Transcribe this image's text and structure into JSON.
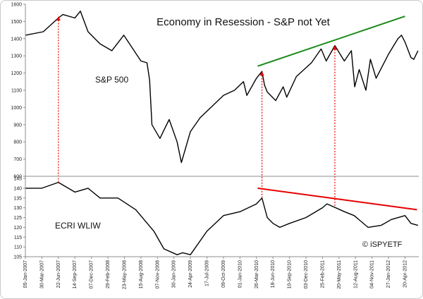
{
  "chart_data": [
    {
      "type": "line",
      "title": "Economy in Resession - S&P not Yet",
      "series": [
        {
          "name": "S&P 500",
          "x": [
            "2007-01-05",
            "2007-04-06",
            "2007-06-22",
            "2007-07-15",
            "2007-09-14",
            "2007-10-12",
            "2007-11-20",
            "2008-01-20",
            "2008-03-20",
            "2008-05-20",
            "2008-08-15",
            "2008-09-15",
            "2008-09-28",
            "2008-10-10",
            "2008-11-20",
            "2008-12-15",
            "2009-01-06",
            "2009-02-15",
            "2009-03-09",
            "2009-04-24",
            "2009-06-12",
            "2009-08-15",
            "2009-10-09",
            "2009-12-04",
            "2010-01-19",
            "2010-02-05",
            "2010-03-26",
            "2010-04-23",
            "2010-05-06",
            "2010-05-20",
            "2010-07-02",
            "2010-08-09",
            "2010-08-27",
            "2010-10-15",
            "2010-12-31",
            "2011-02-18",
            "2011-03-16",
            "2011-04-29",
            "2011-06-16",
            "2011-07-22",
            "2011-08-08",
            "2011-08-31",
            "2011-10-04",
            "2011-10-27",
            "2011-11-25",
            "2012-01-27",
            "2012-03-15",
            "2012-04-02",
            "2012-04-20",
            "2012-05-20",
            "2012-06-04",
            "2012-06-25"
          ],
          "values": [
            1420,
            1440,
            1520,
            1540,
            1520,
            1560,
            1440,
            1370,
            1330,
            1420,
            1270,
            1260,
            1160,
            900,
            820,
            880,
            930,
            800,
            680,
            860,
            940,
            1010,
            1070,
            1100,
            1150,
            1070,
            1170,
            1210,
            1130,
            1090,
            1040,
            1120,
            1060,
            1180,
            1260,
            1340,
            1270,
            1360,
            1270,
            1330,
            1120,
            1220,
            1100,
            1280,
            1170,
            1310,
            1400,
            1420,
            1380,
            1290,
            1280,
            1330
          ]
        },
        {
          "name": "ECRI WLIW",
          "x": [
            "2007-01-05",
            "2007-03-30",
            "2007-06-22",
            "2007-09-14",
            "2007-11-20",
            "2008-01-20",
            "2008-04-20",
            "2008-07-20",
            "2008-10-20",
            "2008-12-10",
            "2009-02-15",
            "2009-03-15",
            "2009-04-24",
            "2009-07-17",
            "2009-10-09",
            "2010-01-01",
            "2010-03-26",
            "2010-04-23",
            "2010-05-20",
            "2010-06-18",
            "2010-07-23",
            "2010-09-10",
            "2010-12-03",
            "2011-02-25",
            "2011-03-20",
            "2011-06-17",
            "2011-08-05",
            "2011-10-15",
            "2011-12-20",
            "2012-02-10",
            "2012-04-20",
            "2012-05-20",
            "2012-06-25"
          ],
          "values": [
            140,
            140,
            143,
            138,
            140,
            135,
            135,
            129,
            118,
            109,
            106,
            107,
            106,
            118,
            126,
            128,
            132,
            135,
            125,
            122,
            120,
            122,
            125,
            130,
            132,
            128,
            126,
            120,
            121,
            124,
            126,
            122,
            121
          ]
        }
      ],
      "ylim_top": [
        600,
        1600
      ],
      "yticks_top": [
        "600",
        "700",
        "800",
        "900",
        "1000",
        "1100",
        "1200",
        "1300",
        "1400",
        "1500",
        "1600"
      ],
      "ylim_bottom": [
        105,
        145
      ],
      "yticks_bottom": [
        "105",
        "110",
        "115",
        "120",
        "125",
        "130",
        "135",
        "140",
        "145"
      ],
      "xtick_labels": [
        "05-Jan-2007",
        "30-Mar-2007",
        "22-Jun-2007",
        "14-Sep-2007",
        "07-Dec-2007",
        "29-Feb-2008",
        "23-May-2008",
        "15-Aug-2008",
        "07-Nov-2008",
        "30-Jan-2009",
        "24-Apr-2009",
        "17-Jul-2009",
        "09-Oct-2009",
        "01-Jan-2010",
        "26-Mar-2010",
        "18-Jun-2010",
        "10-Sep-2010",
        "03-Dec-2010",
        "25-Feb-2011",
        "20-May-2011",
        "12-Aug-2011",
        "04-Nov-2011",
        "27-Jan-2012",
        "20-Apr-2012"
      ],
      "xrange": [
        "2007-01-05",
        "2012-06-29"
      ],
      "trendlines": [
        {
          "series": "S&P 500",
          "color": "#1a8a1a",
          "from": {
            "x": "2010-04-01",
            "y": 1240
          },
          "to": {
            "x": "2012-04-20",
            "y": 1530
          }
        },
        {
          "series": "ECRI WLIW",
          "color": "#e60000",
          "from": {
            "x": "2010-04-01",
            "y": 140
          },
          "to": {
            "x": "2012-06-20",
            "y": 129
          }
        }
      ],
      "markers": [
        {
          "color": "#e60000",
          "x": "2007-06-22",
          "from_y_bottom": 143,
          "to_y_top": 1530
        },
        {
          "color": "#e60000",
          "x": "2010-04-23",
          "from_y_bottom": 135,
          "to_y_top": 1210
        },
        {
          "color": "#e60000",
          "x": "2011-04-29",
          "from_y_bottom": 131,
          "to_y_top": 1360
        }
      ],
      "series_labels": {
        "top": "S&P 500",
        "bottom": "ECRI WLIW"
      },
      "watermark": "© iSPYETF",
      "grid": false,
      "colors": {
        "line": "#000000",
        "green": "#1a8a1a",
        "red": "#e60000",
        "axis": "#8c8c8c"
      }
    }
  ]
}
